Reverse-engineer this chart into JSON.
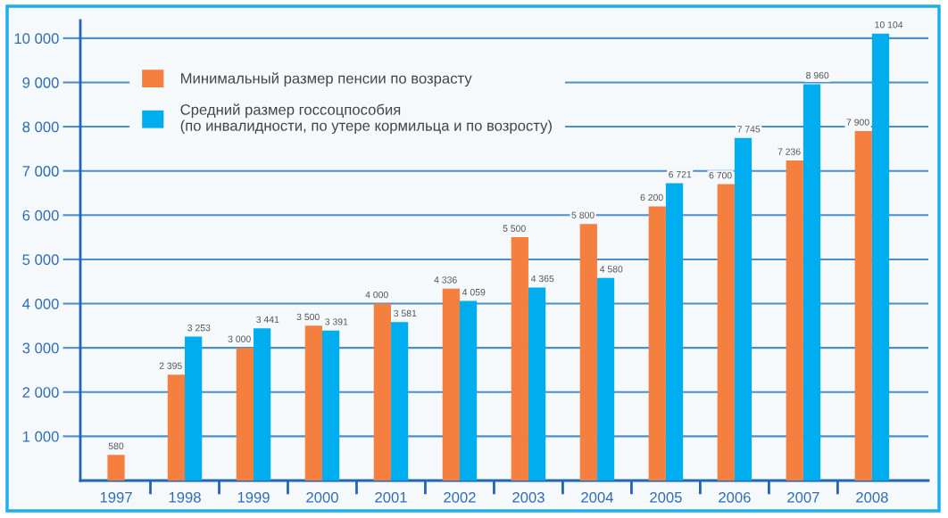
{
  "chart_data": {
    "type": "bar",
    "categories": [
      "1997",
      "1998",
      "1999",
      "2000",
      "2001",
      "2002",
      "2003",
      "2004",
      "2005",
      "2006",
      "2007",
      "2008"
    ],
    "series": [
      {
        "name": "Минимальный размер пенсии по возрасту",
        "color": "#f47f3f",
        "values": [
          580,
          2395,
          3000,
          3500,
          4000,
          4336,
          5500,
          5800,
          6200,
          6700,
          7236,
          7900
        ],
        "value_labels": [
          "580",
          "2 395",
          "3 000",
          "3 500",
          "4 000",
          "4 336",
          "5 500",
          "5 800",
          "6 200",
          "6 700",
          "7 236",
          "7 900"
        ]
      },
      {
        "name": "Средний размер госсоцпособия\n(по инвалидности, по утере кормильца и по возросту)",
        "color": "#00adef",
        "values": [
          null,
          3253,
          3441,
          3391,
          3581,
          4059,
          4365,
          4580,
          6721,
          7745,
          8960,
          10104
        ],
        "value_labels": [
          null,
          "3 253",
          "3 441",
          "3 391",
          "3 581",
          "4 059",
          "4 365",
          "4 580",
          "6 721",
          "7 745",
          "8 960",
          "10 104"
        ]
      }
    ],
    "ylim": [
      0,
      10400
    ],
    "yticks": [
      {
        "value": 1000,
        "label": "1 000"
      },
      {
        "value": 2000,
        "label": "2 000"
      },
      {
        "value": 3000,
        "label": "3 000"
      },
      {
        "value": 4000,
        "label": "4 000"
      },
      {
        "value": 5000,
        "label": "5 000"
      },
      {
        "value": 6000,
        "label": "6 000"
      },
      {
        "value": 7000,
        "label": "7 000"
      },
      {
        "value": 8000,
        "label": "8 000"
      },
      {
        "value": 9000,
        "label": "9 000"
      },
      {
        "value": 10000,
        "label": "10 000"
      }
    ],
    "grid": "y",
    "legend": "top left"
  }
}
